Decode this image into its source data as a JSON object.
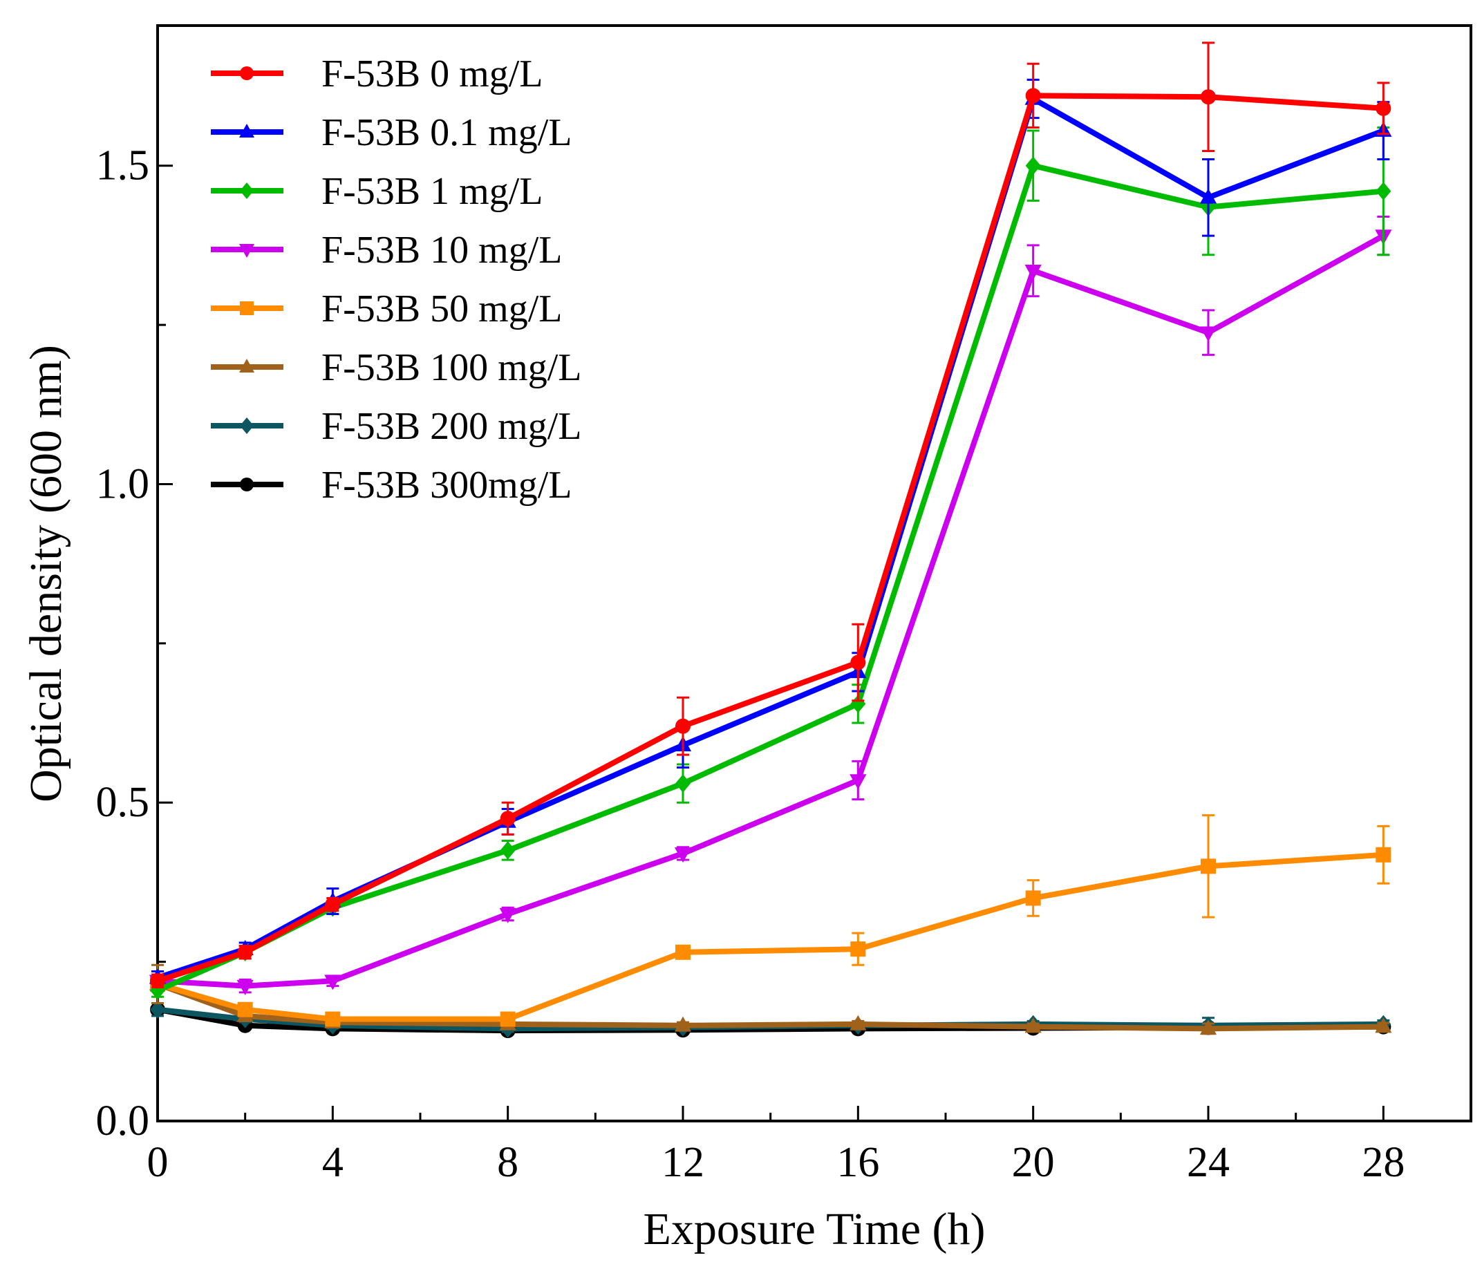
{
  "chart_data": {
    "type": "line",
    "title": "",
    "xlabel": "Exposure Time (h)",
    "ylabel": "Optical density (600 nm)",
    "xlim": [
      0,
      30
    ],
    "ylim": [
      0,
      1.72
    ],
    "x": [
      0,
      2,
      4,
      8,
      12,
      16,
      20,
      24,
      28
    ],
    "x_ticks": [
      0,
      4,
      8,
      12,
      16,
      20,
      24,
      28
    ],
    "x_tick_labels": [
      "0",
      "4",
      "8",
      "12",
      "16",
      "20",
      "24",
      "28"
    ],
    "y_ticks": [
      0.0,
      0.5,
      1.0,
      1.5
    ],
    "y_tick_labels": [
      "0.0",
      "0.5",
      "1.0",
      "1.5"
    ],
    "grid": false,
    "legend_position": "top-left",
    "series": [
      {
        "name": "F-53B 0 mg/L",
        "color": "#ff0000",
        "marker": "circle",
        "values": [
          0.22,
          0.265,
          0.34,
          0.475,
          0.62,
          0.72,
          1.61,
          1.608,
          1.59
        ],
        "errors": [
          0.01,
          0.01,
          0.01,
          0.025,
          0.045,
          0.06,
          0.05,
          0.085,
          0.04
        ]
      },
      {
        "name": "F-53B 0.1 mg/L",
        "color": "#0000ff",
        "marker": "triangle-up",
        "values": [
          0.225,
          0.27,
          0.345,
          0.47,
          0.59,
          0.705,
          1.605,
          1.45,
          1.555
        ],
        "errors": [
          0.01,
          0.01,
          0.02,
          0.02,
          0.035,
          0.03,
          0.03,
          0.06,
          0.045
        ]
      },
      {
        "name": "F-53B 1 mg/L",
        "color": "#00bb00",
        "marker": "diamond",
        "values": [
          0.205,
          0.265,
          0.335,
          0.425,
          0.53,
          0.655,
          1.5,
          1.435,
          1.46
        ],
        "errors": [
          0.01,
          0.01,
          0.01,
          0.015,
          0.03,
          0.03,
          0.055,
          0.075,
          0.1
        ]
      },
      {
        "name": "F-53B 10 mg/L",
        "color": "#cc00ee",
        "marker": "triangle-down",
        "values": [
          0.22,
          0.212,
          0.22,
          0.325,
          0.42,
          0.535,
          1.335,
          1.238,
          1.39
        ],
        "errors": [
          0.01,
          0.01,
          0.008,
          0.01,
          0.01,
          0.03,
          0.04,
          0.035,
          0.03
        ]
      },
      {
        "name": "F-53B 50 mg/L",
        "color": "#ff8c00",
        "marker": "square",
        "values": [
          0.215,
          0.175,
          0.16,
          0.16,
          0.265,
          0.27,
          0.35,
          0.4,
          0.418
        ],
        "errors": [
          0.01,
          0.01,
          0.008,
          0.008,
          0.01,
          0.025,
          0.028,
          0.08,
          0.045
        ]
      },
      {
        "name": "F-53B 100 mg/L",
        "color": "#a0621a",
        "marker": "triangle-up",
        "values": [
          0.215,
          0.165,
          0.155,
          0.152,
          0.15,
          0.152,
          0.148,
          0.145,
          0.148
        ],
        "errors": [
          0.03,
          0.008,
          0.008,
          0.005,
          0.005,
          0.005,
          0.005,
          0.008,
          0.006
        ]
      },
      {
        "name": "F-53B 200 mg/L",
        "color": "#0b5661",
        "marker": "diamond",
        "values": [
          0.175,
          0.16,
          0.15,
          0.145,
          0.147,
          0.15,
          0.152,
          0.15,
          0.152
        ],
        "errors": [
          0.01,
          0.005,
          0.005,
          0.005,
          0.005,
          0.005,
          0.005,
          0.012,
          0.006
        ]
      },
      {
        "name": "F-53B 300mg/L",
        "color": "#000000",
        "marker": "circle",
        "values": [
          0.175,
          0.15,
          0.145,
          0.142,
          0.143,
          0.145,
          0.146,
          0.147,
          0.148
        ],
        "errors": [
          0.005,
          0.005,
          0.005,
          0.005,
          0.005,
          0.005,
          0.005,
          0.005,
          0.005
        ]
      }
    ]
  }
}
